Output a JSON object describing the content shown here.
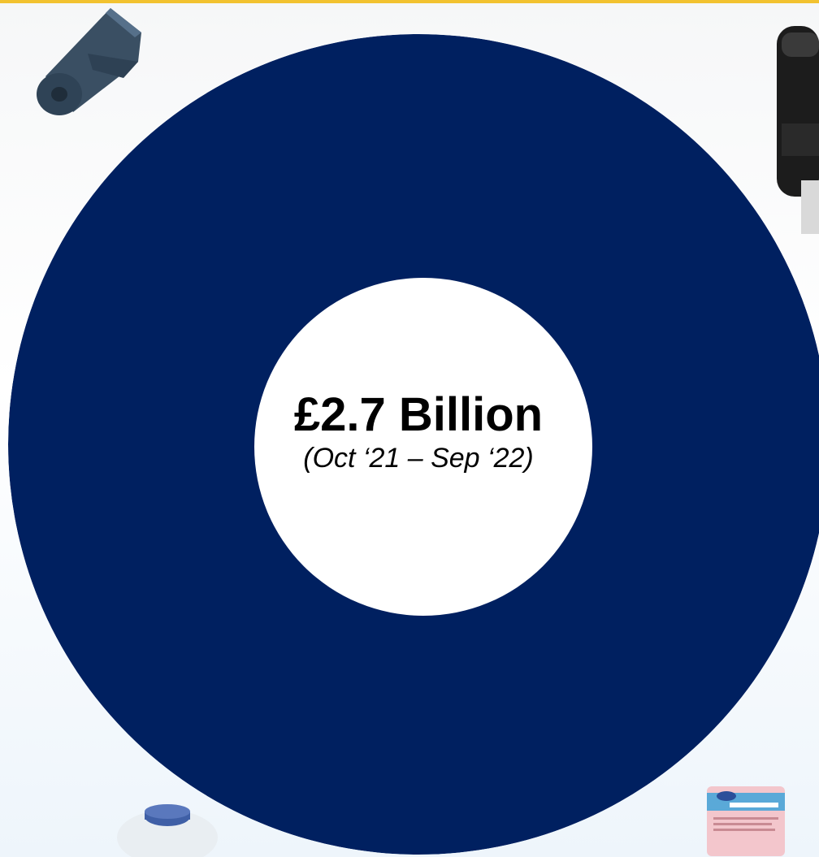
{
  "slide": {
    "total": "£2.7 Billion",
    "period": "(Oct ‘21 – Sep ‘22)"
  },
  "colors": {
    "ring": "#002060",
    "hole": "#ffffff",
    "accent_rule": "#f2c230"
  },
  "images": {
    "top_left": "bin-bag-roll",
    "top_right": "paper-towel-dispenser",
    "bottom_left": "hand-sanitiser-bottle",
    "bottom_right": "disinfectant-wipes-pack"
  }
}
